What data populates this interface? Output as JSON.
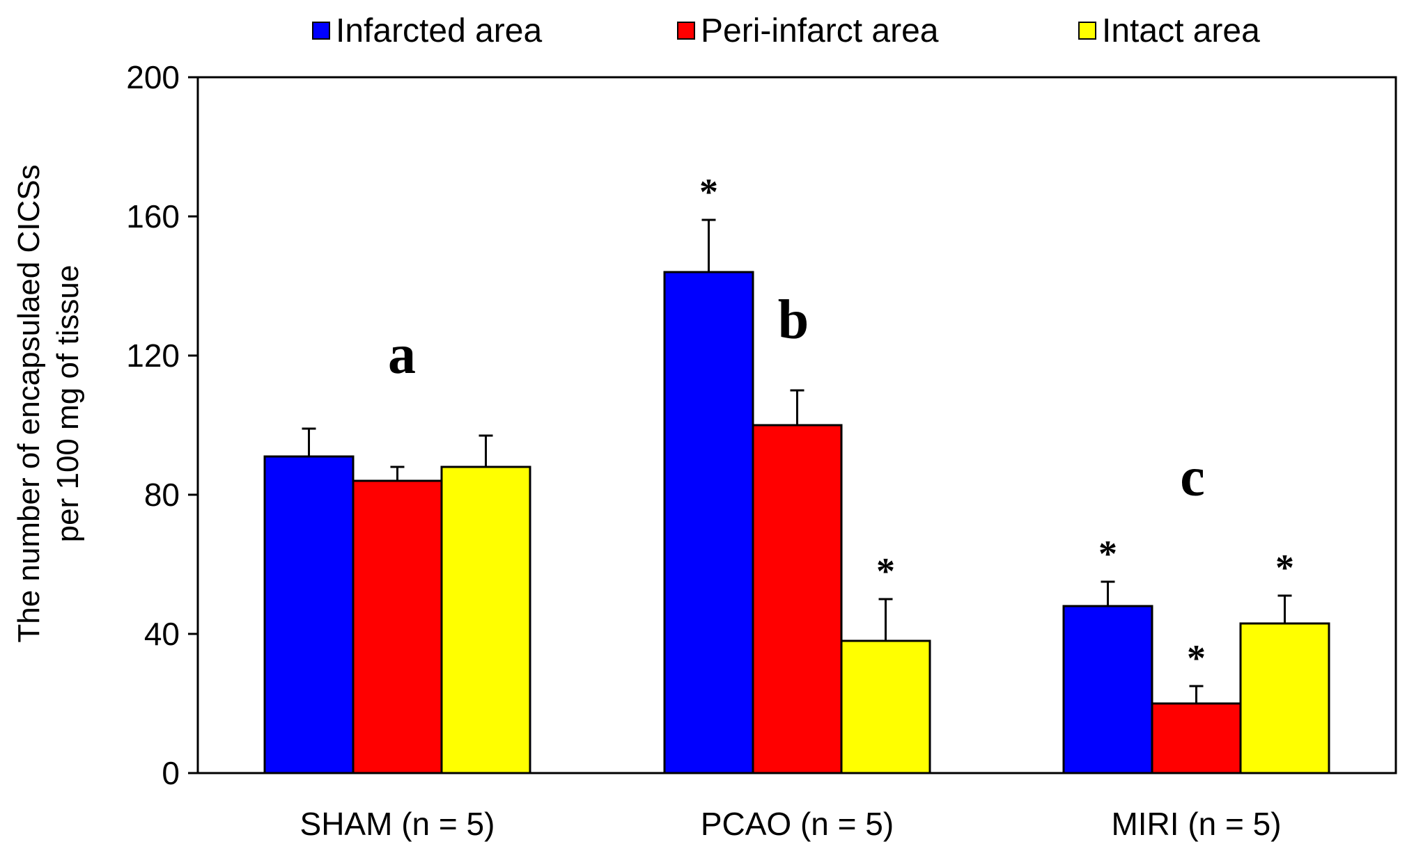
{
  "chart_data": {
    "type": "bar",
    "title": "",
    "xlabel": "",
    "ylabel": [
      "The number of encapsulaed CICSs",
      "per 100 mg of tissue"
    ],
    "ylim": [
      0,
      200
    ],
    "yticks": [
      0,
      40,
      80,
      120,
      160,
      200
    ],
    "grid": false,
    "legend_position": "top",
    "categories": [
      "SHAM (n = 5)",
      "PCAO (n = 5)",
      "MIRI (n = 5)"
    ],
    "group_labels": [
      "a",
      "b",
      "c"
    ],
    "series": [
      {
        "name": "Infarcted area",
        "color": "#0000ff",
        "values": [
          91,
          144,
          48
        ],
        "errors": [
          8,
          15,
          7
        ],
        "significance": [
          "",
          "*",
          "*"
        ]
      },
      {
        "name": "Peri-infarct area",
        "color": "#ff0000",
        "values": [
          84,
          100,
          20
        ],
        "errors": [
          4,
          10,
          5
        ],
        "significance": [
          "",
          "",
          "*"
        ]
      },
      {
        "name": "Intact area",
        "color": "#ffff00",
        "values": [
          88,
          38,
          43
        ],
        "errors": [
          9,
          12,
          8
        ],
        "significance": [
          "",
          "*",
          "*"
        ]
      }
    ]
  }
}
